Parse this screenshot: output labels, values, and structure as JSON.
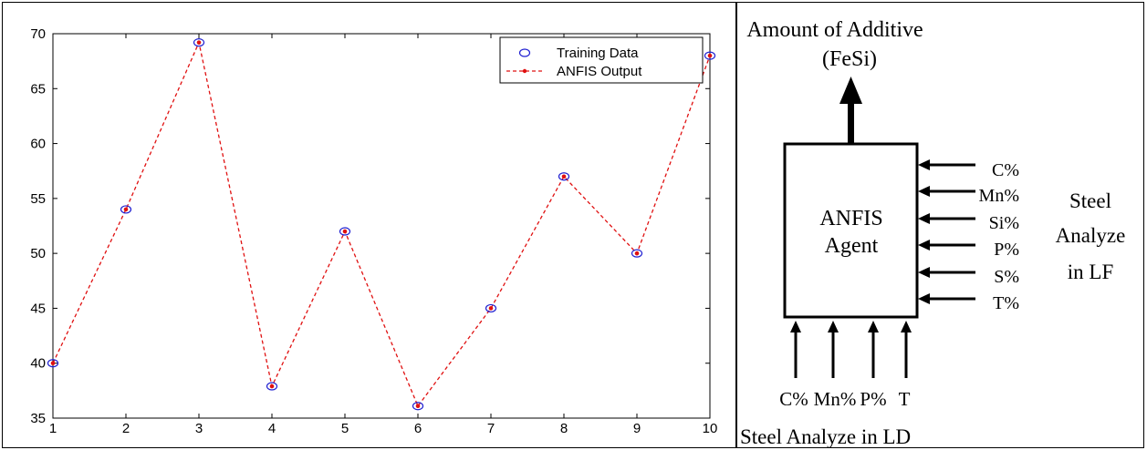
{
  "chart_data": {
    "type": "line",
    "x": [
      1,
      2,
      3,
      4,
      5,
      6,
      7,
      8,
      9,
      10
    ],
    "series": [
      {
        "name": "Training Data",
        "values": [
          40,
          54,
          69.2,
          37.9,
          52,
          36.1,
          45,
          57,
          50,
          68
        ],
        "marker": "circle",
        "color": "#1f1fd1"
      },
      {
        "name": "ANFIS Output",
        "values": [
          40,
          54,
          69.2,
          37.9,
          52,
          36.1,
          45,
          57,
          50,
          68
        ],
        "linestyle": "dashed",
        "color": "#e01010"
      }
    ],
    "xlim": [
      1,
      10
    ],
    "ylim": [
      35,
      70
    ],
    "xticks": [
      "1",
      "2",
      "3",
      "4",
      "5",
      "6",
      "7",
      "8",
      "9",
      "10"
    ],
    "yticks": [
      "35",
      "40",
      "45",
      "50",
      "55",
      "60",
      "65",
      "70"
    ],
    "legend_position": "top-right",
    "grid": false
  },
  "diagram": {
    "output_label_line1": "Amount of Additive",
    "output_label_line2": "(FeSi)",
    "box_label_line1": "ANFIS",
    "box_label_line2": "Agent",
    "right_inputs": [
      "C%",
      "Mn%",
      "Si%",
      "P%",
      "S%",
      "T%"
    ],
    "right_group_line1": "Steel",
    "right_group_line2": "Analyze",
    "right_group_line3": "in LF",
    "bottom_inputs": [
      "C%",
      "Mn%",
      "P%",
      "T"
    ],
    "bottom_group_label": "Steel Analyze in LD"
  }
}
